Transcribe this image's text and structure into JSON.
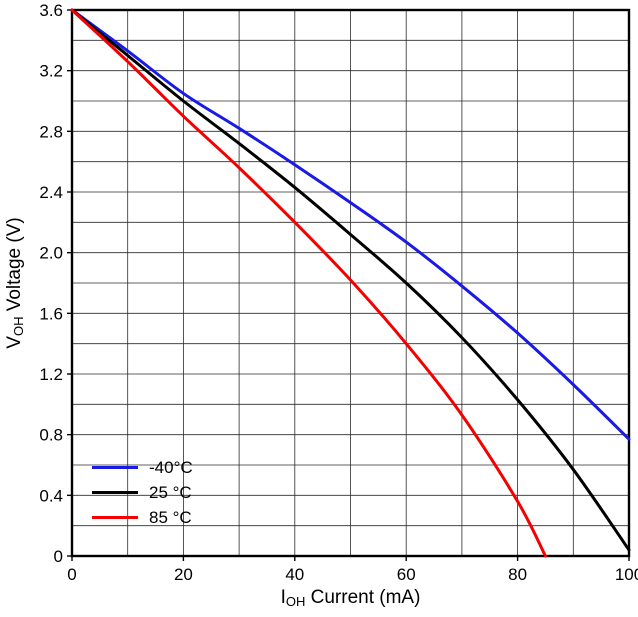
{
  "chart_data": {
    "type": "line",
    "title": "",
    "xlabel": {
      "prefix": "I",
      "sub": "OH",
      "rest": " Current (mA)"
    },
    "ylabel": {
      "prefix": "V",
      "sub": "OH",
      "rest": " Voltage (V)"
    },
    "xlim": [
      0,
      100
    ],
    "ylim": [
      0,
      3.6
    ],
    "x_grid_step": 10,
    "y_grid_step": 0.2,
    "grid": true,
    "legend_position": "lower-left",
    "x_ticks": {
      "values": [
        0,
        20,
        40,
        60,
        80,
        100
      ],
      "labels": [
        "0",
        "20",
        "40",
        "60",
        "80",
        "100"
      ]
    },
    "y_ticks": {
      "values": [
        0,
        0.4,
        0.8,
        1.2,
        1.6,
        2.0,
        2.4,
        2.8,
        3.2,
        3.6
      ],
      "labels": [
        "0",
        "0.4",
        "0.8",
        "1.2",
        "1.6",
        "2.0",
        "2.4",
        "2.8",
        "3.2",
        "3.6"
      ]
    },
    "series": [
      {
        "name": "-40°C",
        "color": "#1a1ae6",
        "x": [
          0,
          10,
          20,
          30,
          40,
          50,
          60,
          70,
          80,
          90,
          100
        ],
        "y": [
          3.6,
          3.33,
          3.05,
          2.82,
          2.58,
          2.33,
          2.07,
          1.78,
          1.47,
          1.13,
          0.77
        ]
      },
      {
        "name": "25 °C",
        "color": "#000000",
        "x": [
          0,
          10,
          20,
          30,
          40,
          50,
          60,
          70,
          80,
          90,
          100
        ],
        "y": [
          3.6,
          3.3,
          3.0,
          2.72,
          2.43,
          2.12,
          1.8,
          1.44,
          1.03,
          0.57,
          0.04
        ]
      },
      {
        "name": "85 °C",
        "color": "#f50000",
        "x": [
          0,
          10,
          20,
          30,
          40,
          50,
          60,
          70,
          80,
          85
        ],
        "y": [
          3.6,
          3.26,
          2.9,
          2.56,
          2.2,
          1.82,
          1.4,
          0.93,
          0.36,
          0.0
        ]
      }
    ]
  }
}
